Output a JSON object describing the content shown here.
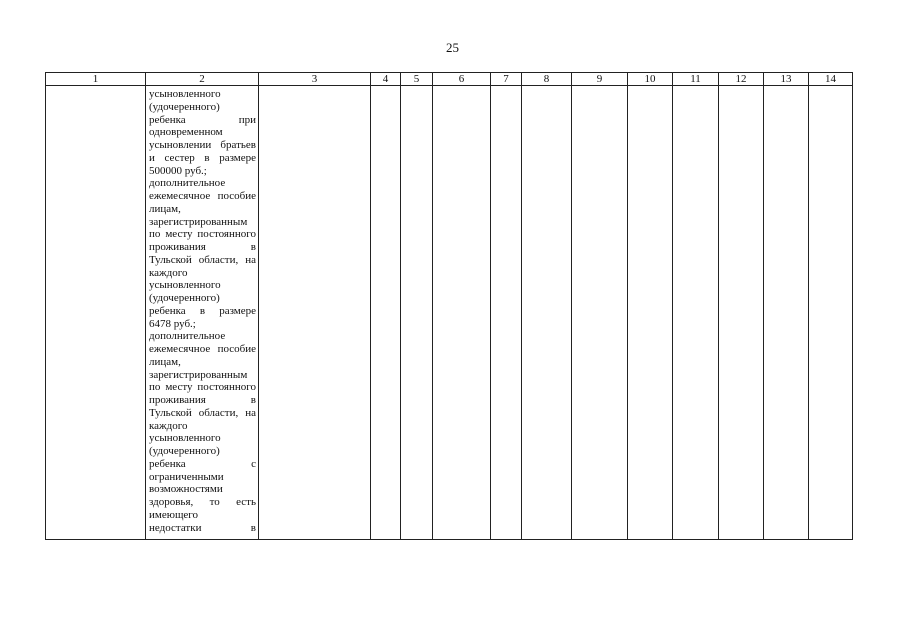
{
  "page_number": "25",
  "table": {
    "headers": [
      "1",
      "2",
      "3",
      "4",
      "5",
      "6",
      "7",
      "8",
      "9",
      "10",
      "11",
      "12",
      "13",
      "14"
    ],
    "column2_lines": [
      {
        "t": "усыновленного",
        "j": false
      },
      {
        "t": "(удочеренного)",
        "j": false
      },
      {
        "t": "ребенка при",
        "j": true
      },
      {
        "t": "одновременном",
        "j": false
      },
      {
        "t": "усыновлении братьев",
        "j": true
      },
      {
        "t": "и сестер в размере",
        "j": true
      },
      {
        "t": "500000 руб.;",
        "j": false
      },
      {
        "t": "дополнительное",
        "j": false
      },
      {
        "t": "ежемесячное пособие",
        "j": true
      },
      {
        "t": "лицам,",
        "j": false
      },
      {
        "t": "зарегистрированным",
        "j": false
      },
      {
        "t": "по месту постоянного",
        "j": true
      },
      {
        "t": "проживания в",
        "j": true
      },
      {
        "t": "Тульской области, на",
        "j": true
      },
      {
        "t": "каждого",
        "j": false
      },
      {
        "t": "усыновленного",
        "j": false
      },
      {
        "t": "(удочеренного)",
        "j": false
      },
      {
        "t": "ребенка в размере",
        "j": true
      },
      {
        "t": "6478 руб.;",
        "j": false
      },
      {
        "t": "дополнительное",
        "j": false
      },
      {
        "t": "ежемесячное пособие",
        "j": true
      },
      {
        "t": "лицам,",
        "j": false
      },
      {
        "t": "зарегистрированным",
        "j": false
      },
      {
        "t": "по месту постоянного",
        "j": true
      },
      {
        "t": "проживания в",
        "j": true
      },
      {
        "t": "Тульской области, на",
        "j": true
      },
      {
        "t": "каждого",
        "j": false
      },
      {
        "t": "усыновленного",
        "j": false
      },
      {
        "t": "(удочеренного)",
        "j": false
      },
      {
        "t": "ребенка с",
        "j": true
      },
      {
        "t": "ограниченными",
        "j": false
      },
      {
        "t": "возможностями",
        "j": false
      },
      {
        "t": "здоровья, то есть",
        "j": true
      },
      {
        "t": "имеющего",
        "j": false
      },
      {
        "t": "недостатки в",
        "j": true
      }
    ]
  }
}
